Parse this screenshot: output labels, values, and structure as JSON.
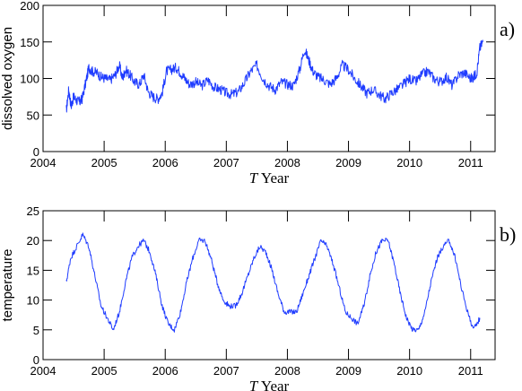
{
  "chart_data": [
    {
      "type": "line",
      "panel_label": "a)",
      "xlabel_var": "T",
      "xlabel_text": "Year",
      "ylabel": "dissolved oxygen",
      "xlim": [
        2004,
        2011.4
      ],
      "ylim": [
        0,
        200
      ],
      "xticks": [
        2004,
        2005,
        2006,
        2007,
        2008,
        2009,
        2010,
        2011
      ],
      "yticks": [
        0,
        50,
        100,
        150,
        200
      ],
      "color": "#1f3cff",
      "series": [
        {
          "x": [
            2004.38,
            2004.42,
            2004.46,
            2004.5,
            2004.55,
            2004.6,
            2004.64,
            2004.7,
            2004.75,
            2004.8,
            2004.88,
            2004.95,
            2005.02,
            2005.1,
            2005.18,
            2005.25,
            2005.3,
            2005.35,
            2005.42,
            2005.5,
            2005.58,
            2005.65,
            2005.72,
            2005.8,
            2005.88,
            2005.95,
            2006.02,
            2006.1,
            2006.18,
            2006.25,
            2006.32,
            2006.4,
            2006.5,
            2006.6,
            2006.7,
            2006.8,
            2006.9,
            2007.0,
            2007.1,
            2007.2,
            2007.3,
            2007.4,
            2007.5,
            2007.6,
            2007.7,
            2007.8,
            2007.9,
            2008.0,
            2008.1,
            2008.2,
            2008.28,
            2008.35,
            2008.42,
            2008.5,
            2008.6,
            2008.7,
            2008.8,
            2008.9,
            2009.0,
            2009.1,
            2009.2,
            2009.3,
            2009.4,
            2009.5,
            2009.6,
            2009.7,
            2009.8,
            2009.9,
            2010.0,
            2010.1,
            2010.2,
            2010.3,
            2010.4,
            2010.5,
            2010.6,
            2010.7,
            2010.8,
            2010.9,
            2011.0,
            2011.05,
            2011.1,
            2011.15,
            2011.2
          ],
          "y": [
            55,
            85,
            62,
            75,
            70,
            68,
            72,
            95,
            115,
            110,
            108,
            102,
            100,
            98,
            105,
            118,
            100,
            112,
            105,
            95,
            92,
            105,
            82,
            75,
            72,
            80,
            110,
            112,
            115,
            108,
            100,
            92,
            95,
            90,
            98,
            88,
            85,
            80,
            78,
            82,
            95,
            110,
            118,
            100,
            90,
            85,
            95,
            92,
            90,
            112,
            140,
            125,
            110,
            102,
            98,
            92,
            100,
            118,
            112,
            100,
            90,
            80,
            85,
            78,
            72,
            80,
            85,
            92,
            100,
            95,
            105,
            110,
            100,
            95,
            102,
            90,
            105,
            108,
            100,
            102,
            108,
            142,
            150
          ]
        }
      ]
    },
    {
      "type": "line",
      "panel_label": "b)",
      "xlabel_var": "T",
      "xlabel_text": "Year",
      "ylabel": "temperature",
      "xlim": [
        2004,
        2011.4
      ],
      "ylim": [
        0,
        25
      ],
      "xticks": [
        2004,
        2005,
        2006,
        2007,
        2008,
        2009,
        2010,
        2011
      ],
      "yticks": [
        0,
        5,
        10,
        15,
        20,
        25
      ],
      "color": "#1f3cff",
      "series": [
        {
          "x": [
            2004.38,
            2004.45,
            2004.55,
            2004.65,
            2004.75,
            2004.85,
            2004.95,
            2005.05,
            2005.15,
            2005.25,
            2005.35,
            2005.45,
            2005.55,
            2005.65,
            2005.75,
            2005.85,
            2005.95,
            2006.05,
            2006.15,
            2006.25,
            2006.35,
            2006.45,
            2006.55,
            2006.65,
            2006.75,
            2006.85,
            2006.95,
            2007.05,
            2007.15,
            2007.25,
            2007.35,
            2007.45,
            2007.55,
            2007.65,
            2007.75,
            2007.85,
            2007.95,
            2008.05,
            2008.15,
            2008.25,
            2008.35,
            2008.45,
            2008.55,
            2008.65,
            2008.75,
            2008.85,
            2008.95,
            2009.05,
            2009.15,
            2009.25,
            2009.35,
            2009.45,
            2009.55,
            2009.65,
            2009.75,
            2009.85,
            2009.95,
            2010.05,
            2010.15,
            2010.25,
            2010.35,
            2010.45,
            2010.55,
            2010.65,
            2010.75,
            2010.85,
            2010.95,
            2011.05,
            2011.15
          ],
          "y": [
            13,
            17,
            19,
            21,
            19,
            14,
            9,
            7,
            5,
            8,
            13,
            17,
            19,
            20,
            18,
            14,
            9,
            6,
            5,
            8,
            13,
            17,
            20,
            20,
            17,
            13,
            10,
            9,
            9,
            11,
            14,
            17,
            19,
            18,
            15,
            11,
            8,
            8,
            8,
            11,
            14,
            17,
            20,
            19,
            16,
            12,
            8,
            7,
            6,
            9,
            14,
            18,
            20,
            20,
            16,
            11,
            7,
            5,
            5,
            8,
            13,
            17,
            19,
            20,
            17,
            12,
            8,
            5,
            7
          ]
        }
      ]
    }
  ]
}
